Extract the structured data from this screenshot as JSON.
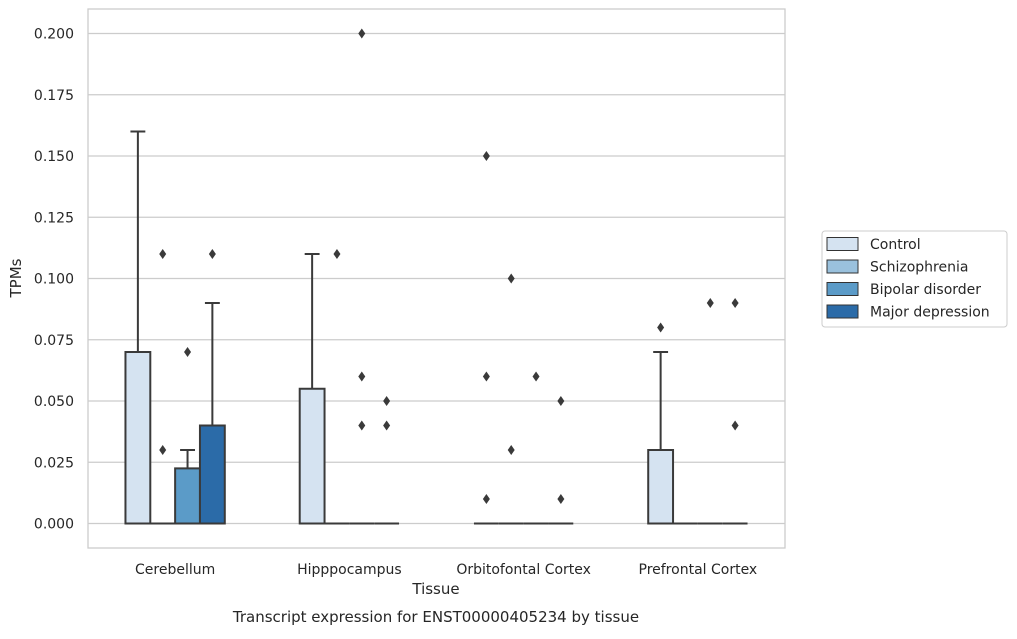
{
  "chart_data": {
    "type": "box",
    "caption": "Transcript expression for ENST00000405234 by tissue",
    "xlabel": "Tissue",
    "ylabel": "TPMs",
    "ylim": [
      -0.01,
      0.21
    ],
    "yticks": [
      0.0,
      0.025,
      0.05,
      0.075,
      0.1,
      0.125,
      0.15,
      0.175,
      0.2
    ],
    "ytick_labels": [
      "0.000",
      "0.025",
      "0.050",
      "0.075",
      "0.100",
      "0.125",
      "0.150",
      "0.175",
      "0.200"
    ],
    "grid": "horizontal",
    "legend_position": "right",
    "categories": [
      "Cerebellum",
      "Hipppocampus",
      "Orbitofontal Cortex",
      "Prefrontal Cortex"
    ],
    "series": [
      {
        "name": "Control",
        "color": "#d5e3f1",
        "boxes": [
          {
            "min": 0,
            "q1": 0,
            "median": 0,
            "q3": 0.07,
            "max": 0.16,
            "outliers": []
          },
          {
            "min": 0,
            "q1": 0,
            "median": 0,
            "q3": 0.055,
            "max": 0.11,
            "outliers": []
          },
          {
            "min": 0,
            "q1": 0,
            "median": 0,
            "q3": 0,
            "max": 0,
            "outliers": [
              0.01,
              0.06,
              0.15
            ]
          },
          {
            "min": 0,
            "q1": 0,
            "median": 0,
            "q3": 0.03,
            "max": 0.07,
            "outliers": [
              0.08
            ]
          }
        ]
      },
      {
        "name": "Schizophrenia",
        "color": "#9ac1dd",
        "boxes": [
          {
            "min": 0,
            "q1": 0,
            "median": 0,
            "q3": 0,
            "max": 0,
            "outliers": [
              0.03,
              0.11
            ]
          },
          {
            "min": 0,
            "q1": 0,
            "median": 0,
            "q3": 0,
            "max": 0,
            "outliers": [
              0.11
            ]
          },
          {
            "min": 0,
            "q1": 0,
            "median": 0,
            "q3": 0,
            "max": 0,
            "outliers": [
              0.03,
              0.1
            ]
          },
          {
            "min": 0,
            "q1": 0,
            "median": 0,
            "q3": 0,
            "max": 0,
            "outliers": []
          }
        ]
      },
      {
        "name": "Bipolar disorder",
        "color": "#5b9bc8",
        "boxes": [
          {
            "min": 0,
            "q1": 0,
            "median": 0,
            "q3": 0.0225,
            "max": 0.03,
            "outliers": [
              0.07
            ]
          },
          {
            "min": 0,
            "q1": 0,
            "median": 0,
            "q3": 0,
            "max": 0,
            "outliers": [
              0.04,
              0.06,
              0.2
            ]
          },
          {
            "min": 0,
            "q1": 0,
            "median": 0,
            "q3": 0,
            "max": 0,
            "outliers": [
              0.06
            ]
          },
          {
            "min": 0,
            "q1": 0,
            "median": 0,
            "q3": 0,
            "max": 0,
            "outliers": [
              0.09
            ]
          }
        ]
      },
      {
        "name": "Major depression",
        "color": "#2b6ba8",
        "boxes": [
          {
            "min": 0,
            "q1": 0,
            "median": 0,
            "q3": 0.04,
            "max": 0.09,
            "outliers": [
              0.11
            ]
          },
          {
            "min": 0,
            "q1": 0,
            "median": 0,
            "q3": 0,
            "max": 0,
            "outliers": [
              0.04,
              0.05
            ]
          },
          {
            "min": 0,
            "q1": 0,
            "median": 0,
            "q3": 0,
            "max": 0,
            "outliers": [
              0.01,
              0.05
            ]
          },
          {
            "min": 0,
            "q1": 0,
            "median": 0,
            "q3": 0,
            "max": 0,
            "outliers": [
              0.04,
              0.09
            ]
          }
        ]
      }
    ]
  }
}
